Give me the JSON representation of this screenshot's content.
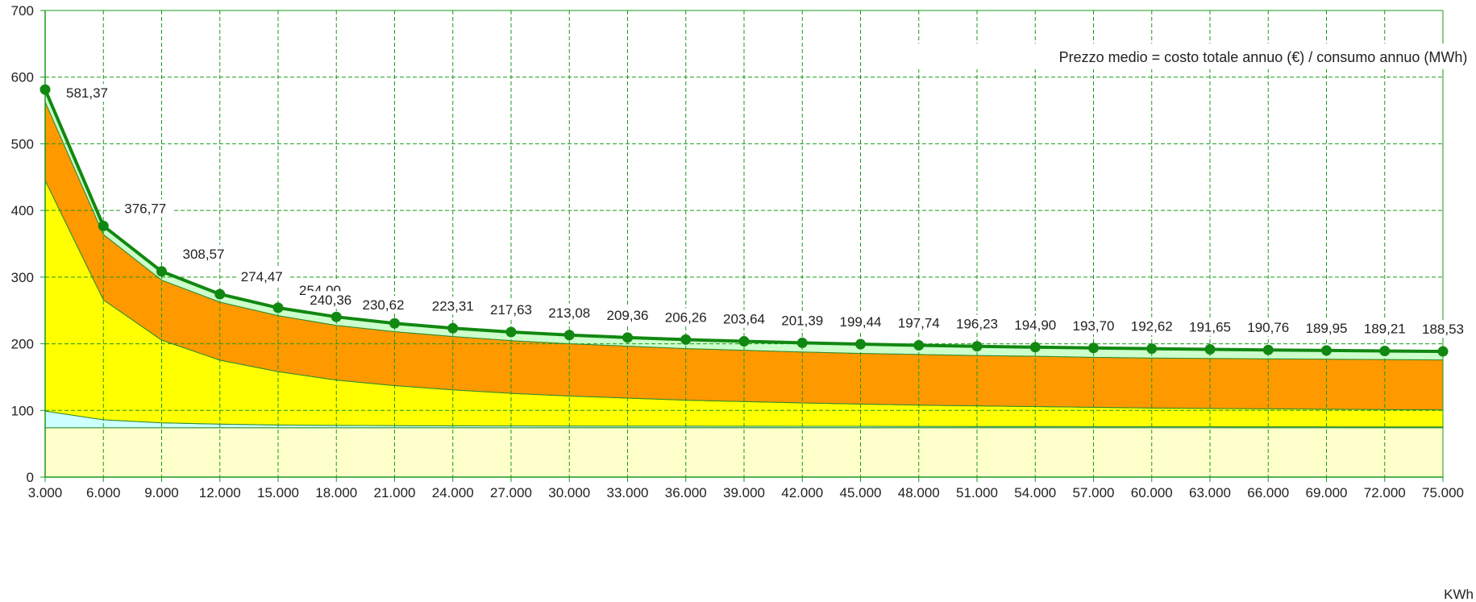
{
  "chart_data": {
    "type": "area",
    "x": [
      3000,
      6000,
      9000,
      12000,
      15000,
      18000,
      21000,
      24000,
      27000,
      30000,
      33000,
      36000,
      39000,
      42000,
      45000,
      48000,
      51000,
      54000,
      57000,
      60000,
      63000,
      66000,
      69000,
      72000,
      75000
    ],
    "x_tick_labels": [
      "3.000",
      "6.000",
      "9.000",
      "12.000",
      "15.000",
      "18.000",
      "21.000",
      "24.000",
      "27.000",
      "30.000",
      "33.000",
      "36.000",
      "39.000",
      "42.000",
      "45.000",
      "48.000",
      "51.000",
      "54.000",
      "57.000",
      "60.000",
      "63.000",
      "66.000",
      "69.000",
      "72.000",
      "75.000"
    ],
    "xlabel": "KWh",
    "ylabel": "",
    "title": "",
    "ylim": [
      0,
      700
    ],
    "y_ticks": [
      0,
      100,
      200,
      300,
      400,
      500,
      600,
      700
    ],
    "grid": true,
    "annotation": "Prezzo medio = costo totale annuo (€) / consumo annuo (MWh)",
    "stacked_series": [
      {
        "color": "#FFFFCC",
        "values": [
          74,
          74,
          74,
          74,
          74,
          74,
          74,
          74,
          74,
          74,
          74,
          74,
          74,
          74,
          74,
          74,
          74,
          74,
          74,
          74,
          74,
          74,
          74,
          74,
          74
        ]
      },
      {
        "color": "#CCFFFF",
        "values": [
          25,
          12,
          7.5,
          5.5,
          4.2,
          3.6,
          3.2,
          2.9,
          2.7,
          2.6,
          2.5,
          2.4,
          2.3,
          2.2,
          2.1,
          2.0,
          1.9,
          1.8,
          1.7,
          1.6,
          1.5,
          1.4,
          1.4,
          1.3,
          1.3
        ]
      },
      {
        "color": "#FFFF00",
        "values": [
          346,
          180,
          124,
          96,
          80,
          68,
          60,
          54,
          49,
          45,
          42,
          39,
          37,
          35,
          33.5,
          32,
          31,
          30,
          29,
          28,
          27.5,
          27,
          26.5,
          26,
          25.5
        ]
      },
      {
        "color": "#FF9900",
        "values": [
          118,
          98,
          90,
          87,
          84,
          82,
          81,
          80,
          79,
          78.5,
          78,
          77.5,
          77,
          76.5,
          76,
          76,
          75.5,
          75.5,
          75,
          75,
          75,
          75,
          75,
          75,
          75
        ]
      },
      {
        "color": "#CCFFCC",
        "values": [
          18.37,
          12.77,
          13.07,
          11.97,
          11.8,
          12.76,
          12.42,
          12.41,
          12.93,
          12.98,
          12.86,
          12.86,
          13.34,
          13.19,
          13.84,
          13.74,
          13.33,
          13.6,
          14,
          14.02,
          13.65,
          13.36,
          13.05,
          12.91,
          12.73
        ]
      }
    ],
    "series": [
      {
        "type": "line",
        "color": "#118811",
        "values": [
          581.37,
          376.77,
          308.57,
          274.47,
          254.0,
          240.36,
          230.62,
          223.31,
          217.63,
          213.08,
          209.36,
          206.26,
          203.64,
          201.39,
          199.44,
          197.74,
          196.23,
          194.9,
          193.7,
          192.62,
          191.65,
          190.76,
          189.95,
          189.21,
          188.53
        ],
        "labels": [
          "581,37",
          "376,77",
          "308,57",
          "274,47",
          "254,00",
          "240,36",
          "230,62",
          "223,31",
          "217,63",
          "213,08",
          "209,36",
          "206,26",
          "203,64",
          "201,39",
          "199,44",
          "197,74",
          "196,23",
          "194,90",
          "193,70",
          "192,62",
          "191,65",
          "190,76",
          "189,95",
          "189,21",
          "188,53"
        ]
      }
    ],
    "grid_color": "#1a9a1a",
    "axis_color": "#1a9a1a"
  }
}
